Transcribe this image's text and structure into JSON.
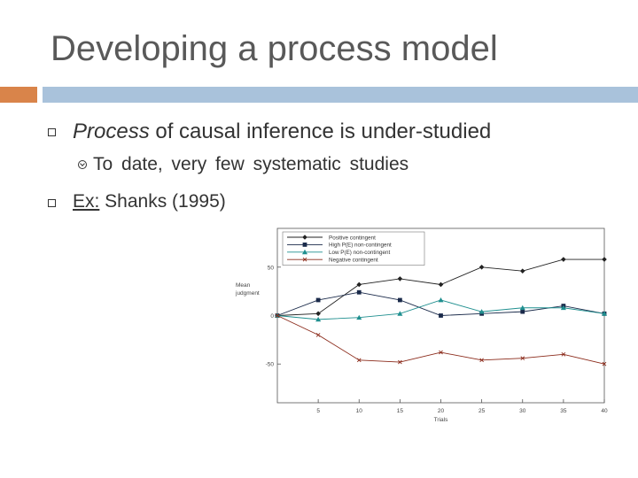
{
  "slide": {
    "title": "Developing a process model",
    "bullets": [
      {
        "emphasis": "Process",
        "text": " of causal inference is under-studied"
      },
      {
        "underline": "Ex:",
        "text": " Shanks (1995)"
      }
    ],
    "sub_bullet": "To date, very few systematic studies"
  },
  "colors": {
    "accent_orange": "#D9844A",
    "accent_blue": "#A9C2DB",
    "title": "#595959"
  },
  "chart_data": {
    "type": "line",
    "xlabel": "Trials",
    "ylabel_lines": [
      "Mean",
      "judgment"
    ],
    "x": [
      0,
      5,
      10,
      15,
      20,
      25,
      30,
      35,
      40
    ],
    "x_ticks": [
      "5",
      "10",
      "15",
      "20",
      "25",
      "30",
      "35",
      "40"
    ],
    "y_ticks": [
      "50",
      "0",
      "-50"
    ],
    "xlim": [
      0,
      40
    ],
    "ylim": [
      -90,
      90
    ],
    "legend_position": "top-left",
    "series": [
      {
        "name": "Positive contingent",
        "marker": "diamond",
        "color": "#222222",
        "values": [
          0,
          2,
          32,
          38,
          32,
          50,
          46,
          58,
          58
        ]
      },
      {
        "name": "High P(E) non-contingent",
        "marker": "square",
        "color": "#1a2a4a",
        "values": [
          0,
          16,
          24,
          16,
          0,
          2,
          4,
          10,
          2
        ]
      },
      {
        "name": "Low P(E) non-contingent",
        "marker": "triangle",
        "color": "#1f8f8f",
        "values": [
          0,
          -4,
          -2,
          2,
          16,
          4,
          8,
          8,
          2
        ]
      },
      {
        "name": "Negative contingent",
        "marker": "x",
        "color": "#8b2a1a",
        "values": [
          0,
          -20,
          -46,
          -48,
          -38,
          -46,
          -44,
          -40,
          -50
        ]
      }
    ]
  }
}
